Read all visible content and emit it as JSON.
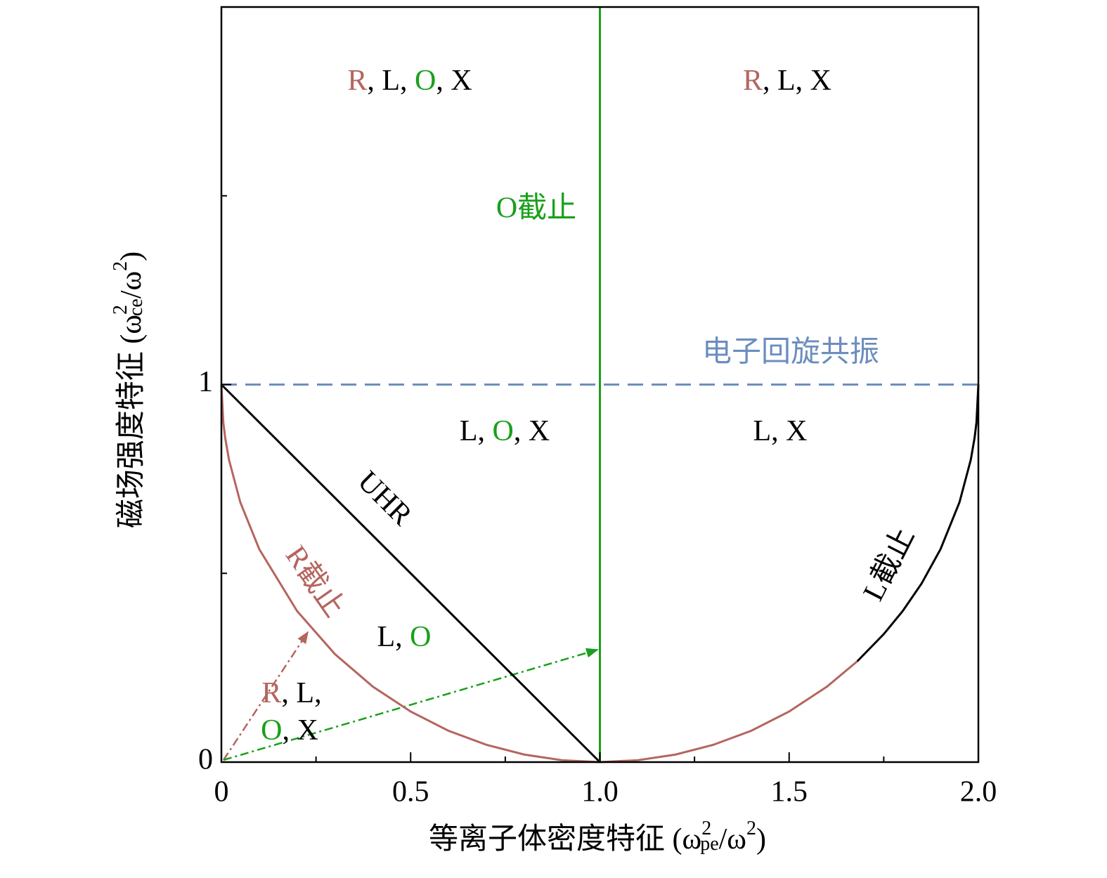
{
  "chart_data": {
    "type": "line",
    "xlabel": [
      "等离子体密度特征 (ω",
      "2",
      "pe",
      "/ω",
      "2",
      ")"
    ],
    "ylabel": [
      "磁场强度特征 (ω",
      "2",
      "ce",
      "/ω",
      "2",
      ")"
    ],
    "xlim": [
      0,
      2
    ],
    "ylim": [
      0,
      2
    ],
    "xticks": [
      0,
      0.5,
      {
        "value": 1,
        "label": "1.0"
      },
      1.5,
      {
        "value": 2,
        "label": "2.0"
      }
    ],
    "yticks": [
      0,
      1
    ],
    "xminor": [
      0.25,
      0.75,
      1.25,
      1.75
    ],
    "yminor": [
      0.5,
      1.5
    ],
    "series": [
      {
        "name": "R截止",
        "color": "#b5655e",
        "x": [
          0,
          0.005,
          0.01,
          0.02,
          0.05,
          0.1,
          0.2,
          0.3,
          0.4,
          0.5,
          0.6,
          0.7,
          0.8,
          0.9,
          1.0,
          1.1,
          1.2,
          1.3,
          1.4,
          1.5,
          1.6,
          1.68
        ],
        "values": [
          1,
          0.9,
          0.859,
          0.801,
          0.688,
          0.564,
          0.4,
          0.286,
          0.2,
          0.134,
          0.083,
          0.046,
          0.02,
          0.005,
          0,
          0.005,
          0.02,
          0.046,
          0.083,
          0.134,
          0.2,
          0.267
        ]
      },
      {
        "name": "L截止",
        "color": "#000000",
        "x": [
          1.68,
          1.75,
          1.8,
          1.85,
          1.9,
          1.95,
          1.98,
          1.99,
          1.995,
          2
        ],
        "values": [
          0.267,
          0.339,
          0.4,
          0.473,
          0.564,
          0.688,
          0.801,
          0.859,
          0.9,
          1
        ]
      },
      {
        "name": "UHR",
        "color": "#000000",
        "x": [
          0,
          1
        ],
        "values": [
          1,
          0
        ]
      },
      {
        "name": "O截止",
        "color": "#1aa01a",
        "x": [
          1,
          1
        ],
        "values": [
          0,
          2
        ]
      },
      {
        "name": "电子回旋共振",
        "color": "#6c8ebf",
        "dashed": true,
        "x": [
          0,
          2
        ],
        "values": [
          1,
          1
        ]
      }
    ],
    "regions": [
      [
        {
          "text": "R",
          "color": "#b5655e"
        },
        {
          "text": ", L, ",
          "color": "#000000"
        },
        {
          "text": "O",
          "color": "#1aa01a"
        },
        {
          "text": ", X",
          "color": "#000000"
        }
      ],
      [
        {
          "text": "R",
          "color": "#b5655e"
        },
        {
          "text": ", L, X",
          "color": "#000000"
        }
      ],
      [
        {
          "text": "L, ",
          "color": "#000000"
        },
        {
          "text": "O",
          "color": "#1aa01a"
        },
        {
          "text": ", X",
          "color": "#000000"
        }
      ],
      [
        {
          "text": "L, X",
          "color": "#000000"
        }
      ],
      [
        {
          "text": "L, ",
          "color": "#000000"
        },
        {
          "text": "O",
          "color": "#1aa01a"
        }
      ],
      [
        {
          "text": "R",
          "color": "#b5655e"
        },
        {
          "text": ", L,",
          "color": "#000000"
        }
      ],
      [
        {
          "text": "O",
          "color": "#1aa01a"
        },
        {
          "text": ", X",
          "color": "#000000"
        }
      ]
    ]
  }
}
